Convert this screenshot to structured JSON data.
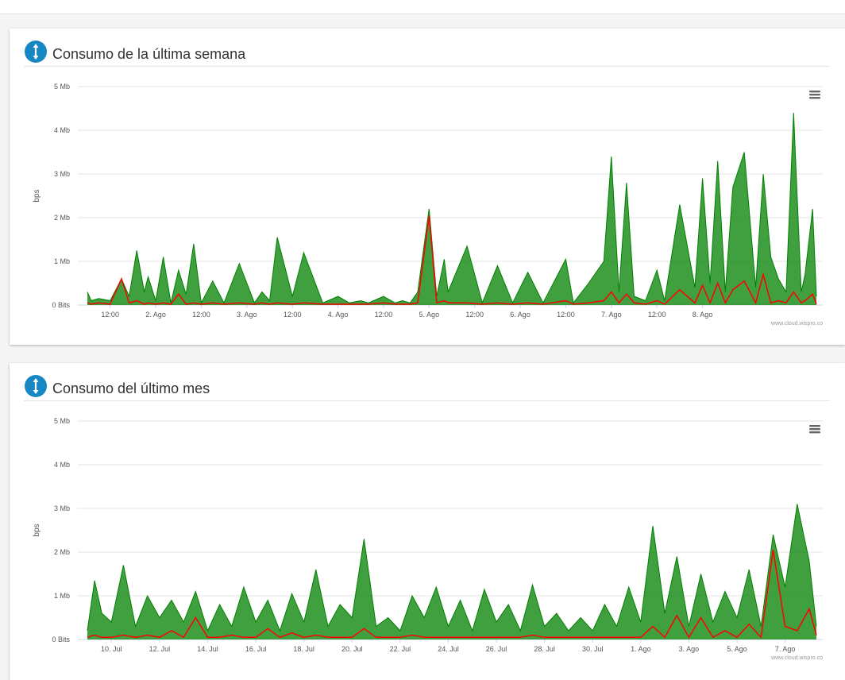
{
  "colors": {
    "in": "#008000",
    "out": "#ff0000",
    "grid": "#e6e6e6",
    "icon": "#1787c4"
  },
  "panels": [
    {
      "title": "Consumo de la última semana",
      "icon": "vertical-arrows-icon",
      "menu_icon": "hamburger-menu-icon",
      "credits": "www.cloud.wispro.co",
      "chart_data": {
        "type": "area",
        "ylabel": "bps",
        "ylim": [
          0,
          5
        ],
        "y_ticks": [
          "0 Bits",
          "1 Mb",
          "2 Mb",
          "3 Mb",
          "4 Mb",
          "5 Mb"
        ],
        "x_ticks": [
          "12:00",
          "2. Ago",
          "12:00",
          "3. Ago",
          "12:00",
          "4. Ago",
          "12:00",
          "5. Ago",
          "12:00",
          "6. Ago",
          "12:00",
          "7. Ago",
          "12:00",
          "8. Ago"
        ],
        "grid": true,
        "legend": "none",
        "x_hours": [
          0,
          1,
          3,
          6,
          9,
          11,
          13,
          15,
          16,
          18,
          20,
          22,
          24,
          26,
          28,
          30,
          33,
          36,
          40,
          44,
          46,
          48,
          50,
          54,
          57,
          62,
          66,
          69,
          72,
          74,
          78,
          81,
          83,
          85,
          87,
          90,
          92,
          94,
          95,
          100,
          104,
          108,
          112,
          116,
          120,
          126,
          128,
          132,
          136,
          138,
          140,
          142,
          144,
          147,
          150,
          152,
          156,
          160,
          162,
          164,
          166,
          168,
          170,
          173,
          176,
          178,
          180,
          182,
          184,
          186,
          188,
          189,
          191,
          192
        ],
        "series": [
          {
            "values": [
              0.3,
              0.1,
              0.15,
              0.1,
              0.6,
              0.2,
              1.25,
              0.3,
              0.65,
              0.1,
              1.1,
              0.05,
              0.8,
              0.25,
              1.4,
              0.05,
              0.55,
              0.05,
              0.95,
              0.05,
              0.3,
              0.1,
              1.55,
              0.2,
              1.2,
              0.05,
              0.2,
              0.05,
              0.1,
              0.05,
              0.2,
              0.05,
              0.1,
              0.05,
              0.3,
              2.2,
              0.2,
              1.05,
              0.3,
              1.35,
              0.05,
              0.9,
              0.05,
              0.75,
              0.05,
              1.05,
              0.05,
              0.5,
              1.0,
              3.4,
              0.3,
              2.8,
              0.2,
              0.1,
              0.8,
              0.1,
              2.3,
              0.4,
              2.9,
              0.5,
              3.3,
              0.3,
              2.7,
              3.5,
              0.4,
              3.0,
              1.1,
              0.6,
              0.3,
              4.4,
              0.3,
              0.7,
              2.2,
              0.2
            ]
          },
          {
            "values": [
              0.05,
              0.02,
              0.05,
              0.02,
              0.6,
              0.05,
              0.1,
              0.02,
              0.05,
              0.02,
              0.05,
              0.02,
              0.25,
              0.02,
              0.05,
              0.02,
              0.05,
              0.02,
              0.05,
              0.02,
              0.05,
              0.02,
              0.05,
              0.02,
              0.05,
              0.02,
              0.02,
              0.02,
              0.02,
              0.02,
              0.05,
              0.02,
              0.02,
              0.02,
              0.05,
              2.05,
              0.05,
              0.1,
              0.05,
              0.05,
              0.02,
              0.05,
              0.02,
              0.05,
              0.02,
              0.1,
              0.02,
              0.05,
              0.1,
              0.3,
              0.05,
              0.25,
              0.05,
              0.02,
              0.1,
              0.02,
              0.35,
              0.05,
              0.45,
              0.05,
              0.5,
              0.05,
              0.35,
              0.55,
              0.05,
              0.7,
              0.05,
              0.1,
              0.05,
              0.3,
              0.05,
              0.1,
              0.25,
              0.02
            ]
          }
        ]
      }
    },
    {
      "title": "Consumo del último mes",
      "icon": "vertical-arrows-icon",
      "menu_icon": "hamburger-menu-icon",
      "credits": "www.cloud.wispro.co",
      "chart_data": {
        "type": "area",
        "ylabel": "bps",
        "ylim": [
          0,
          5
        ],
        "y_ticks": [
          "0 Bits",
          "1 Mb",
          "2 Mb",
          "3 Mb",
          "4 Mb",
          "5 Mb"
        ],
        "x_ticks": [
          "10. Jul",
          "12. Jul",
          "14. Jul",
          "16. Jul",
          "18. Jul",
          "20. Jul",
          "22. Jul",
          "24. Jul",
          "26. Jul",
          "28. Jul",
          "30. Jul",
          "1. Ago",
          "3. Ago",
          "5. Ago",
          "7. Ago"
        ],
        "grid": true,
        "legend": "none",
        "x_days": [
          0,
          0.3,
          0.6,
          1.0,
          1.5,
          2.0,
          2.5,
          3.0,
          3.5,
          4.0,
          4.5,
          5.0,
          5.5,
          6.0,
          6.5,
          7.0,
          7.5,
          8.0,
          8.5,
          9.0,
          9.5,
          10.0,
          10.5,
          11.0,
          11.5,
          12.0,
          12.5,
          13.0,
          13.5,
          14.0,
          14.5,
          15.0,
          15.5,
          16.0,
          16.5,
          17.0,
          17.5,
          18.0,
          18.5,
          19.0,
          19.5,
          20.0,
          20.5,
          21.0,
          21.5,
          22.0,
          22.5,
          23.0,
          23.5,
          24.0,
          24.5,
          25.0,
          25.5,
          26.0,
          26.5,
          27.0,
          27.5,
          28.0,
          28.5,
          29.0,
          29.5,
          30.0,
          30.3
        ],
        "series": [
          {
            "values": [
              0.2,
              1.35,
              0.6,
              0.4,
              1.7,
              0.3,
              1.0,
              0.5,
              0.9,
              0.4,
              1.1,
              0.2,
              0.8,
              0.3,
              1.2,
              0.4,
              0.9,
              0.2,
              1.05,
              0.4,
              1.6,
              0.3,
              0.8,
              0.5,
              2.3,
              0.3,
              0.5,
              0.2,
              1.0,
              0.5,
              1.2,
              0.3,
              0.9,
              0.2,
              1.15,
              0.4,
              0.8,
              0.2,
              1.25,
              0.3,
              0.6,
              0.2,
              0.5,
              0.2,
              0.8,
              0.3,
              1.2,
              0.4,
              2.6,
              0.6,
              1.9,
              0.3,
              1.5,
              0.4,
              1.1,
              0.5,
              1.6,
              0.3,
              2.4,
              1.2,
              3.1,
              1.8,
              0.3
            ]
          },
          {
            "values": [
              0.05,
              0.1,
              0.05,
              0.05,
              0.1,
              0.05,
              0.1,
              0.05,
              0.2,
              0.05,
              0.5,
              0.05,
              0.05,
              0.1,
              0.05,
              0.05,
              0.25,
              0.05,
              0.15,
              0.05,
              0.1,
              0.05,
              0.05,
              0.05,
              0.25,
              0.05,
              0.05,
              0.05,
              0.1,
              0.05,
              0.05,
              0.05,
              0.05,
              0.05,
              0.05,
              0.05,
              0.05,
              0.05,
              0.1,
              0.05,
              0.05,
              0.05,
              0.05,
              0.05,
              0.05,
              0.05,
              0.05,
              0.05,
              0.3,
              0.05,
              0.55,
              0.05,
              0.5,
              0.05,
              0.2,
              0.05,
              0.35,
              0.05,
              2.05,
              0.3,
              0.2,
              0.7,
              0.1
            ]
          }
        ]
      }
    }
  ]
}
